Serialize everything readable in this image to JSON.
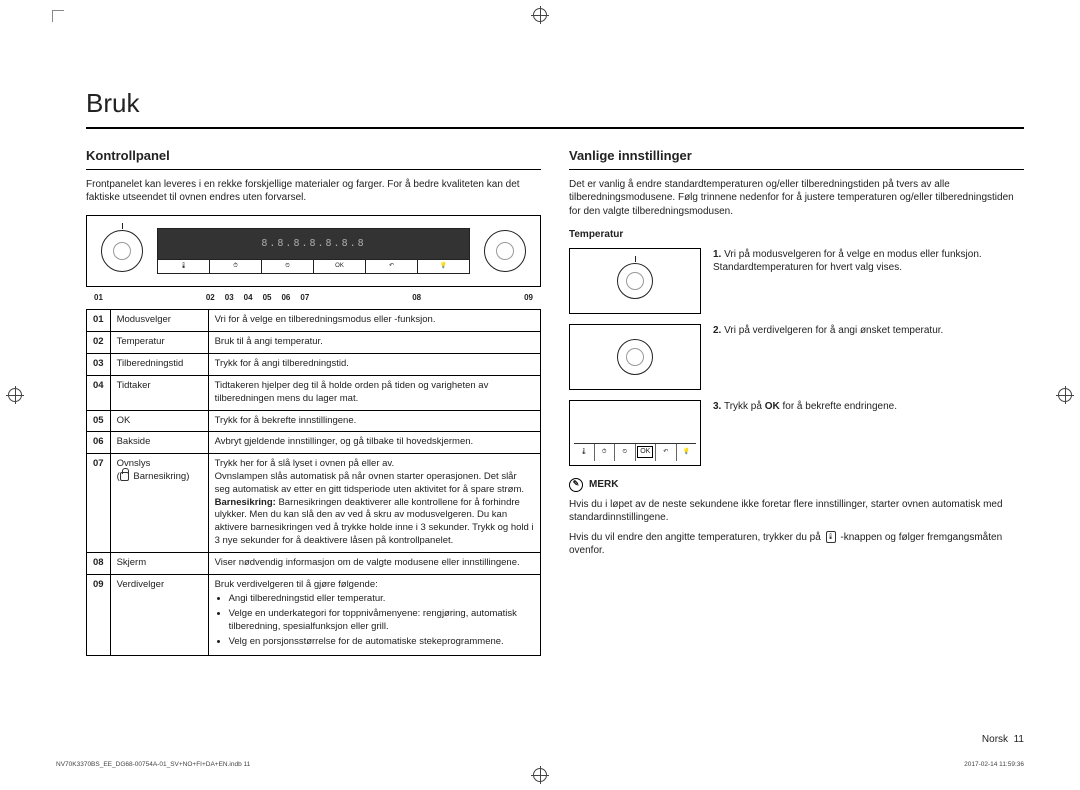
{
  "page": {
    "title": "Bruk",
    "footer_lang": "Norsk",
    "footer_page": "11",
    "meta_left": "NV70K3370BS_EE_DG68-00754A-01_SV+NO+FI+DA+EN.indb   11",
    "meta_right": "2017-02-14   11:59:36"
  },
  "left": {
    "heading": "Kontrollpanel",
    "intro": "Frontpanelet kan leveres i en rekke forskjellige materialer og farger. For å bedre kvaliteten kan det faktiske utseendet til ovnen endres uten forvarsel.",
    "display_placeholder": "8.8.8.8.8.8.8",
    "callouts": [
      "01",
      "02",
      "03",
      "04",
      "05",
      "06",
      "07",
      "08",
      "09"
    ],
    "rows": [
      {
        "num": "01",
        "name": "Modusvelger",
        "desc": "Vri for å velge en tilberedningsmodus eller -funksjon."
      },
      {
        "num": "02",
        "name": "Temperatur",
        "desc": "Bruk til å angi temperatur."
      },
      {
        "num": "03",
        "name": "Tilberedningstid",
        "desc": "Trykk for å angi tilberedningstid."
      },
      {
        "num": "04",
        "name": "Tidtaker",
        "desc": "Tidtakeren hjelper deg til å holde orden på tiden og varigheten av tilberedningen mens du lager mat."
      },
      {
        "num": "05",
        "name": "OK",
        "desc": "Trykk for å bekrefte innstillingene."
      },
      {
        "num": "06",
        "name": "Bakside",
        "desc": "Avbryt gjeldende innstillinger, og gå tilbake til hovedskjermen."
      },
      {
        "num": "07",
        "name": "Ovnslys",
        "name2_prefix": "(",
        "name2_label": " Barnesikring)",
        "desc": "Trykk her for å slå lyset i ovnen på eller av.\nOvnslampen slås automatisk på når ovnen starter operasjonen. Det slår seg automatisk av etter en gitt tidsperiode uten aktivitet for å spare strøm.",
        "bold_lead": "Barnesikring:",
        "desc2": " Barnesikringen deaktiverer alle kontrollene for å forhindre ulykker. Men du kan slå den av ved å skru av modusvelgeren. Du kan aktivere barnesikringen ved å trykke holde inne i 3 sekunder. Trykk og hold i 3 nye sekunder for å deaktivere låsen på kontrollpanelet."
      },
      {
        "num": "08",
        "name": "Skjerm",
        "desc": "Viser nødvendig informasjon om de valgte modusene eller innstillingene."
      },
      {
        "num": "09",
        "name": "Verdivelger",
        "desc": "Bruk verdivelgeren til å gjøre følgende:",
        "bullets": [
          "Angi tilberedningstid eller temperatur.",
          "Velge en underkategori for toppnivåmenyene: rengjøring, automatisk tilberedning, spesialfunksjon eller grill.",
          "Velg en porsjonsstørrelse for de automatiske stekeprogrammene."
        ]
      }
    ]
  },
  "right": {
    "heading": "Vanlige innstillinger",
    "intro": "Det er vanlig å endre standardtemperaturen og/eller tilberedningstiden på tvers av alle tilberedningsmodusene. Følg trinnene nedenfor for å justere temperaturen og/eller tilberedningstiden for den valgte tilberedningsmodusen.",
    "sub": "Temperatur",
    "steps": [
      {
        "n": "1.",
        "t": "Vri på modusvelgeren for å velge en modus eller funksjon. Standardtemperaturen for hvert valg vises."
      },
      {
        "n": "2.",
        "t": "Vri på verdivelgeren for å angi ønsket temperatur."
      },
      {
        "n": "3.",
        "t_pre": "Trykk på ",
        "bold": "OK",
        "t_post": " for å bekrefte endringene."
      }
    ],
    "ok_label": "OK",
    "note_label": "MERK",
    "note_body_1": "Hvis du i løpet av de neste sekundene ikke foretar flere innstillinger, starter ovnen automatisk med standardinnstillingene.",
    "note_body_2a": "Hvis du vil endre den angitte temperaturen, trykker du på ",
    "note_body_2b": " -knappen og følger fremgangsmåten ovenfor."
  }
}
